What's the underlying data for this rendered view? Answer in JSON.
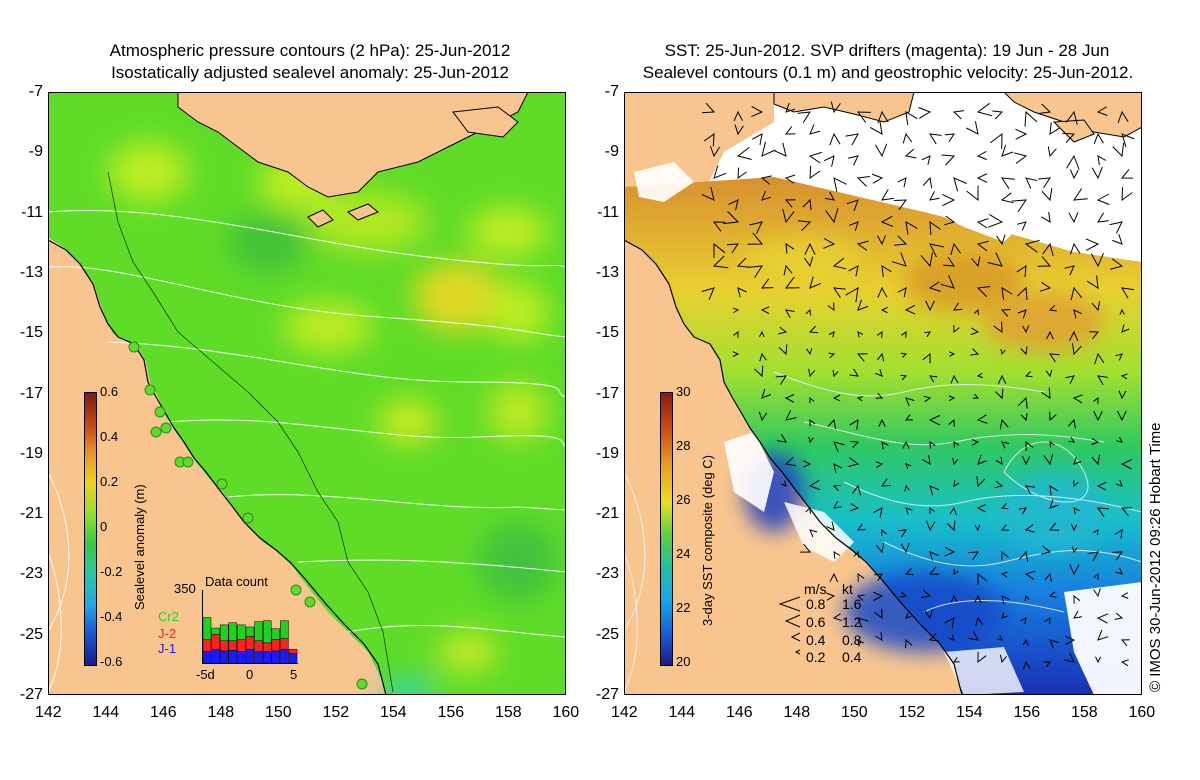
{
  "left_panel": {
    "title_line1": "Atmospheric pressure contours (2 hPa): 25-Jun-2012",
    "title_line2": "Isostatically adjusted sealevel anomaly: 25-Jun-2012",
    "colorbar_label": "Sealevel anomaly (m)",
    "colorbar_ticks": [
      "0.6",
      "0.4",
      "0.2",
      "0",
      "-0.2",
      "-0.4",
      "-0.6"
    ],
    "inset": {
      "title": "Data count",
      "ymax": "350",
      "series": [
        {
          "name": "Cr2",
          "color": "#1fd21f"
        },
        {
          "name": "J-2",
          "color": "#ff2020"
        },
        {
          "name": "J-1",
          "color": "#1a1aff"
        }
      ],
      "xticks": [
        "-5d",
        "0",
        "5"
      ],
      "bars": [
        {
          "j1": 60,
          "j2": 55,
          "cr2": 105
        },
        {
          "j1": 70,
          "j2": 70,
          "cr2": 30
        },
        {
          "j1": 62,
          "j2": 48,
          "cr2": 75
        },
        {
          "j1": 65,
          "j2": 45,
          "cr2": 85
        },
        {
          "j1": 60,
          "j2": 55,
          "cr2": 70
        },
        {
          "j1": 70,
          "j2": 60,
          "cr2": 45
        },
        {
          "j1": 58,
          "j2": 52,
          "cr2": 90
        },
        {
          "j1": 60,
          "j2": 40,
          "cr2": 105
        },
        {
          "j1": 62,
          "j2": 55,
          "cr2": 50
        },
        {
          "j1": 70,
          "j2": 50,
          "cr2": 85
        },
        {
          "j1": 50,
          "j2": 20,
          "cr2": 0
        }
      ]
    }
  },
  "right_panel": {
    "title_line1": "SST: 25-Jun-2012. SVP drifters (magenta): 19 Jun - 28 Jun",
    "title_line2": "Sealevel contours (0.1 m) and geostrophic velocity: 25-Jun-2012.",
    "colorbar_label": "3-day SST composite (deg C)",
    "colorbar_ticks": [
      "30",
      "28",
      "26",
      "24",
      "22",
      "20"
    ],
    "velocity_legend": {
      "header_ms": "m/s",
      "header_kt": "kt",
      "rows": [
        {
          "ms": "0.8",
          "kt": "1.6"
        },
        {
          "ms": "0.6",
          "kt": "1.2"
        },
        {
          "ms": "0.4",
          "kt": "0.8"
        },
        {
          "ms": "0.2",
          "kt": "0.4"
        }
      ]
    }
  },
  "axes": {
    "lat_ticks": [
      "-7",
      "-9",
      "-11",
      "-13",
      "-15",
      "-17",
      "-19",
      "-21",
      "-23",
      "-25",
      "-27"
    ],
    "lon_ticks": [
      "142",
      "144",
      "146",
      "148",
      "150",
      "152",
      "154",
      "156",
      "158",
      "160"
    ]
  },
  "credit": "© IMOS 30-Jun-2012 09:26 Hobart Time",
  "colors": {
    "land": "#f9c58f",
    "sla_base": "#5fdc28",
    "coast": "#000000"
  }
}
